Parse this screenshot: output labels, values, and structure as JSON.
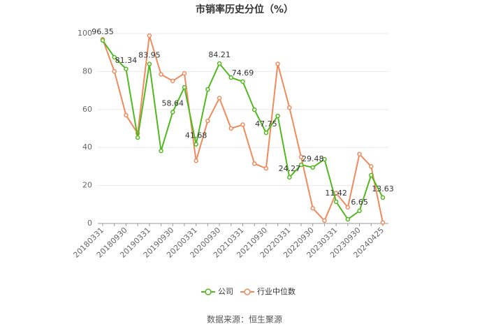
{
  "chart_data": {
    "type": "line",
    "title": "市销率历史分位（%）",
    "categories": [
      "20180331",
      null,
      "20180930",
      null,
      "20190331",
      null,
      "20190930",
      null,
      "20200331",
      null,
      "20200930",
      null,
      "20210331",
      null,
      "20210930",
      null,
      "20220331",
      null,
      "20220930",
      null,
      "20230331",
      null,
      "20230930",
      null,
      "20240425"
    ],
    "series": [
      {
        "name": "公司",
        "color": "#52b81f",
        "values": [
          96.35,
          87.5,
          81.34,
          45.2,
          83.95,
          38.2,
          58.64,
          71.7,
          41.68,
          70.6,
          84.21,
          76.8,
          74.69,
          59.9,
          47.75,
          56.6,
          24.27,
          30.9,
          29.48,
          33.8,
          11.42,
          2.2,
          6.65,
          25.4,
          13.63
        ],
        "value_labels": [
          "96.35",
          null,
          "81.34",
          null,
          "83.95",
          null,
          "58.64",
          null,
          "41.68",
          null,
          "84.21",
          null,
          "74.69",
          null,
          "47.75",
          null,
          "24.27",
          null,
          "29.48",
          null,
          "11.42",
          null,
          "6.65",
          null,
          "13.63"
        ]
      },
      {
        "name": "行业中位数",
        "color": "#f08a5d",
        "values": [
          97,
          80.1,
          57,
          47.4,
          98.9,
          78.5,
          75,
          79,
          33,
          54,
          66,
          50,
          52,
          31.5,
          29,
          84,
          61,
          35,
          8,
          1.5,
          16,
          8.5,
          36.5,
          30,
          0.5
        ]
      }
    ],
    "ylim": [
      0,
      100
    ],
    "yticks": [
      0,
      20,
      40,
      60,
      80,
      100
    ],
    "grid": true,
    "source": "数据来源：恒生聚源"
  }
}
